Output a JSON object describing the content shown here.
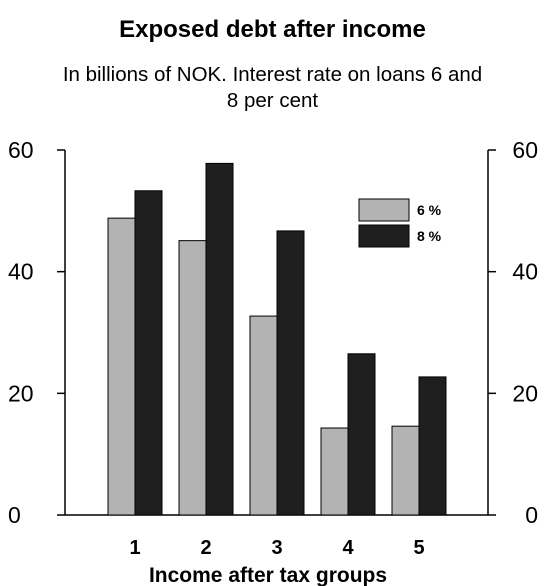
{
  "chart_data": {
    "type": "bar",
    "title": "Exposed debt after income",
    "subtitle": "In billions of NOK. Interest rate on loans 6 and 8 per cent",
    "xlabel": "Income after tax groups",
    "ylabel": "",
    "categories": [
      "1",
      "2",
      "3",
      "4",
      "5"
    ],
    "series": [
      {
        "name": "6 %",
        "values": [
          48.8,
          45.1,
          32.7,
          14.3,
          14.6
        ],
        "color": "#b3b3b3"
      },
      {
        "name": "8 %",
        "values": [
          53.3,
          57.8,
          46.7,
          26.5,
          22.7
        ],
        "color": "#1f1f1f"
      }
    ],
    "ylim": [
      0,
      60
    ],
    "yticks": [
      "0",
      "20",
      "40",
      "60"
    ],
    "grid": false,
    "legend_position": "top-right",
    "y_axis_both_sides": true
  }
}
